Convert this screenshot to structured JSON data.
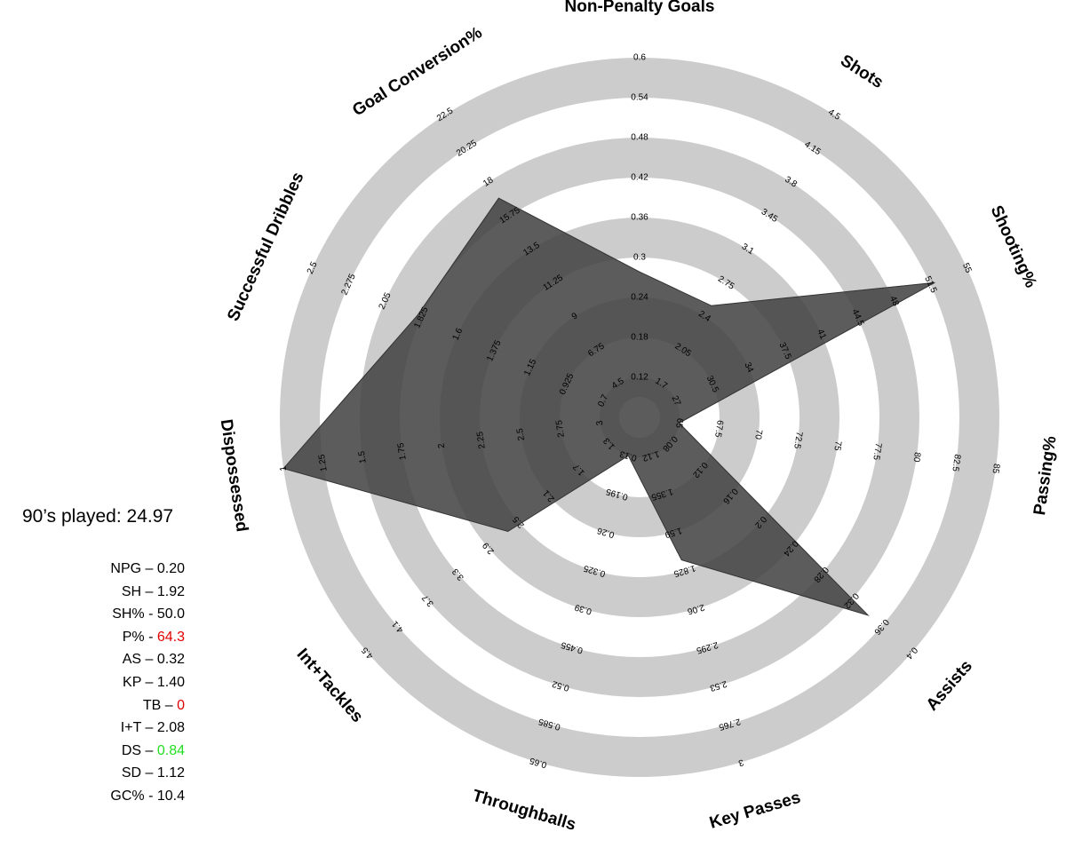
{
  "chart_data": {
    "type": "radar",
    "axes": [
      {
        "name": "Non-Penalty Goals",
        "ticks": [
          "0.12",
          "0.18",
          "0.24",
          "0.3",
          "0.36",
          "0.42",
          "0.48",
          "0.54",
          "0.6"
        ],
        "value": 0.2
      },
      {
        "name": "Shots",
        "ticks": [
          "1.7",
          "2.05",
          "2.4",
          "2.75",
          "3.1",
          "3.45",
          "3.8",
          "4.15",
          "4.5"
        ],
        "value": 1.92
      },
      {
        "name": "Shooting%",
        "ticks": [
          "27",
          "30.5",
          "34",
          "37.5",
          "41",
          "44.5",
          "48",
          "51.5",
          "55"
        ],
        "value": 50.0
      },
      {
        "name": "Passing%",
        "ticks": [
          "65",
          "67.5",
          "70",
          "72.5",
          "75",
          "77.5",
          "80",
          "82.5",
          "85"
        ],
        "value": 64.3
      },
      {
        "name": "Assists",
        "ticks": [
          "0.08",
          "0.12",
          "0.16",
          "0.2",
          "0.24",
          "0.28",
          "0.32",
          "0.36",
          "0.4"
        ],
        "value": 0.32
      },
      {
        "name": "Key Passes",
        "ticks": [
          "1.12",
          "1.355",
          "1.59",
          "1.825",
          "2.06",
          "2.295",
          "2.53",
          "2.765",
          "3"
        ],
        "value": 1.4
      },
      {
        "name": "Throughballs",
        "ticks": [
          "0.13",
          "0.195",
          "0.26",
          "0.325",
          "0.39",
          "0.455",
          "0.52",
          "0.585",
          "0.65"
        ],
        "value": 0
      },
      {
        "name": "Int+Tackles",
        "ticks": [
          "1.3",
          "1.7",
          "2.1",
          "2.5",
          "2.9",
          "3.3",
          "3.7",
          "4.1",
          "4.5"
        ],
        "value": 2.08
      },
      {
        "name": "Dispossessed",
        "ticks": [
          "3",
          "2.75",
          "2.5",
          "2.25",
          "2",
          "1.75",
          "1.5",
          "1.25",
          "1"
        ],
        "value": 0.84
      },
      {
        "name": "Successful Dribbles",
        "ticks": [
          "0.7",
          "0.925",
          "1.15",
          "1.375",
          "1.6",
          "1.825",
          "2.05",
          "2.275",
          "2.5"
        ],
        "value": 1.12
      },
      {
        "name": "Goal Conversion%",
        "ticks": [
          "4.5",
          "6.75",
          "9",
          "11.25",
          "13.5",
          "15.75",
          "18",
          "20.25",
          "22.5"
        ],
        "value": 10.4
      }
    ],
    "polygon_fraction": [
      0.33,
      0.29,
      0.89,
      0.0,
      0.82,
      0.34,
      0.0,
      0.42,
      1.0,
      0.64,
      0.69
    ],
    "colors": {
      "ring": "#cccccc",
      "polygon": "#404040",
      "negative": "#e00000",
      "positive": "#22dd22"
    }
  },
  "summary": {
    "played": "90’s played: 24.97",
    "stats": [
      {
        "label": "NPG – ",
        "value": "0.20",
        "color": ""
      },
      {
        "label": "SH – ",
        "value": "1.92",
        "color": ""
      },
      {
        "label": "SH% - ",
        "value": "50.0",
        "color": ""
      },
      {
        "label": "P% - ",
        "value": "64.3",
        "color": "#e00000"
      },
      {
        "label": "AS – ",
        "value": "0.32",
        "color": ""
      },
      {
        "label": "KP – ",
        "value": "1.40",
        "color": ""
      },
      {
        "label": "TB – ",
        "value": "0",
        "color": "#e00000"
      },
      {
        "label": "I+T – ",
        "value": "2.08",
        "color": ""
      },
      {
        "label": "DS – ",
        "value": "0.84",
        "color": "#22dd22"
      },
      {
        "label": "SD – ",
        "value": "1.12",
        "color": ""
      },
      {
        "label": "GC% - ",
        "value": "10.4",
        "color": ""
      }
    ]
  }
}
